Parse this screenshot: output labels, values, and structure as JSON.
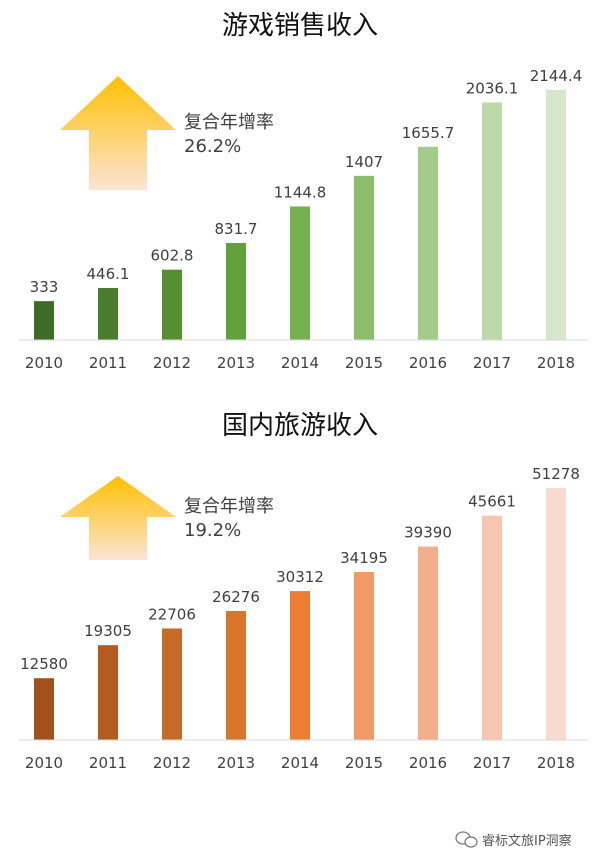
{
  "chart_data": [
    {
      "type": "bar",
      "title": "游戏销售收入",
      "categories": [
        "2010",
        "2011",
        "2012",
        "2013",
        "2014",
        "2015",
        "2016",
        "2017",
        "2018"
      ],
      "values": [
        333,
        446.1,
        602.8,
        831.7,
        1144.8,
        1407,
        1655.7,
        2036.1,
        2144.4
      ],
      "value_labels": [
        "333",
        "446.1",
        "602.8",
        "831.7",
        "1144.8",
        "1407",
        "1655.7",
        "2036.1",
        "2144.4"
      ],
      "ylim": [
        0,
        2400
      ],
      "grid": false,
      "annotation": {
        "label": "复合年增率",
        "value": "26.2%"
      },
      "colors": [
        "#3e6b26",
        "#4a7c2d",
        "#568e32",
        "#63a13a",
        "#77b04f",
        "#8cbd6a",
        "#a3cb8a",
        "#bcdaa8",
        "#d5e8c9"
      ],
      "arrow_colors": {
        "top": "#ffc000",
        "bottom": "#fbe4d5"
      }
    },
    {
      "type": "bar",
      "title": "国内旅游收入",
      "categories": [
        "2010",
        "2011",
        "2012",
        "2013",
        "2014",
        "2015",
        "2016",
        "2017",
        "2018"
      ],
      "values": [
        12580,
        19305,
        22706,
        26276,
        30312,
        34195,
        39390,
        45661,
        51278
      ],
      "value_labels": [
        "12580",
        "19305",
        "22706",
        "26276",
        "30312",
        "34195",
        "39390",
        "45661",
        "51278"
      ],
      "ylim": [
        0,
        57000
      ],
      "grid": false,
      "annotation": {
        "label": "复合年增率",
        "value": "19.2%"
      },
      "colors": [
        "#a0511c",
        "#b45c20",
        "#c66a27",
        "#d8762c",
        "#ed7d31",
        "#f19a66",
        "#f3ae8c",
        "#f6c6ae",
        "#f9dbcd"
      ],
      "arrow_colors": {
        "top": "#ffc000",
        "bottom": "#fbe4d5"
      }
    }
  ],
  "watermark": {
    "text": "睿标文旅IP洞察",
    "icon": "wechat-icon"
  }
}
